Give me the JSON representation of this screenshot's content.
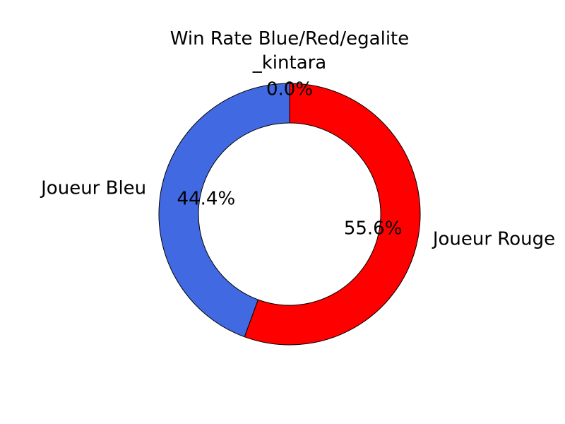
{
  "chart_data": {
    "type": "pie",
    "style": "donut",
    "title": "Win Rate Blue/Red/egalite",
    "slices": [
      {
        "label": "_kintara",
        "value": 0.0,
        "pct_label": "0.0%",
        "color": "#ffffff"
      },
      {
        "label": "Joueur Bleu",
        "value": 44.4,
        "pct_label": "44.4%",
        "color": "#4169e1"
      },
      {
        "label": "Joueur Rouge",
        "value": 55.6,
        "pct_label": "55.6%",
        "color": "#ff0000"
      }
    ],
    "edge_color": "#000000"
  }
}
